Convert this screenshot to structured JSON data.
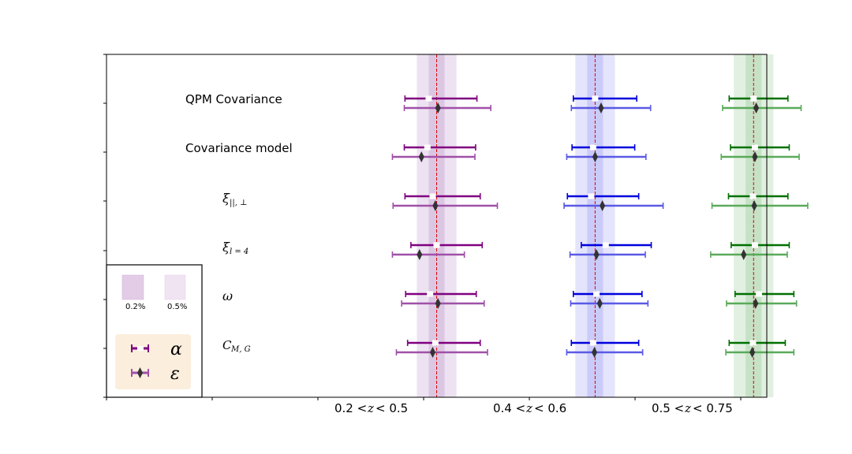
{
  "chart_data": {
    "type": "forest",
    "title": "",
    "xlabel": "",
    "ylabel": "",
    "xlim": [
      -0.1,
      0.9
    ],
    "groups": [
      {
        "label": "0.2 < z < 0.5",
        "label_text": "0.2 < z < 0.5",
        "center": 0.4,
        "band_inner": 0.012,
        "band_outer": 0.03,
        "color_alpha": "#800080",
        "color_eps": "#a050a8",
        "band_color": "#9b5fb0"
      },
      {
        "label": "0.4 < z < 0.6",
        "label_text": "0.4 < z < 0.6",
        "center": 0.64,
        "band_inner": 0.012,
        "band_outer": 0.03,
        "color_alpha": "#0000dd",
        "color_eps": "#5a5ae6",
        "band_color": "#6a6af0"
      },
      {
        "label": "0.5 < z < 0.75",
        "label_text": "0.5 < z < 0.75",
        "center": 0.88,
        "band_inner": 0.012,
        "band_outer": 0.03,
        "color_alpha": "#007000",
        "color_eps": "#5aaa5a",
        "band_color": "#5aaa5a"
      }
    ],
    "rows": [
      {
        "label": "QPM Covariance",
        "kind": "text"
      },
      {
        "label": "Covariance model",
        "kind": "text"
      },
      {
        "label": "ξ||,⊥",
        "kind": "xi_par_perp"
      },
      {
        "label": "ξl=4",
        "kind": "xi_l4"
      },
      {
        "label": "ω",
        "kind": "omega"
      },
      {
        "label": "CM,G",
        "kind": "cmg"
      }
    ],
    "alpha": [
      [
        [
          0.352,
          0.388,
          0.461
        ],
        [
          0.607,
          0.64,
          0.703
        ],
        [
          0.843,
          0.88,
          0.932
        ]
      ],
      [
        [
          0.351,
          0.386,
          0.459
        ],
        [
          0.605,
          0.637,
          0.7
        ],
        [
          0.845,
          0.882,
          0.934
        ]
      ],
      [
        [
          0.352,
          0.394,
          0.466
        ],
        [
          0.598,
          0.634,
          0.706
        ],
        [
          0.842,
          0.879,
          0.932
        ]
      ],
      [
        [
          0.361,
          0.4,
          0.469
        ],
        [
          0.619,
          0.656,
          0.725
        ],
        [
          0.846,
          0.882,
          0.934
        ]
      ],
      [
        [
          0.353,
          0.39,
          0.46
        ],
        [
          0.607,
          0.642,
          0.711
        ],
        [
          0.852,
          0.888,
          0.941
        ]
      ],
      [
        [
          0.356,
          0.398,
          0.466
        ],
        [
          0.604,
          0.637,
          0.706
        ],
        [
          0.843,
          0.879,
          0.928
        ]
      ]
    ],
    "epsilon": [
      [
        [
          0.351,
          0.402,
          0.482
        ],
        [
          0.604,
          0.649,
          0.724
        ],
        [
          0.833,
          0.884,
          0.952
        ]
      ],
      [
        [
          0.333,
          0.377,
          0.458
        ],
        [
          0.597,
          0.64,
          0.717
        ],
        [
          0.831,
          0.882,
          0.949
        ]
      ],
      [
        [
          0.334,
          0.398,
          0.492
        ],
        [
          0.593,
          0.651,
          0.743
        ],
        [
          0.817,
          0.881,
          0.962
        ]
      ],
      [
        [
          0.333,
          0.374,
          0.442
        ],
        [
          0.602,
          0.642,
          0.716
        ],
        [
          0.815,
          0.865,
          0.931
        ]
      ],
      [
        [
          0.347,
          0.402,
          0.472
        ],
        [
          0.603,
          0.647,
          0.72
        ],
        [
          0.839,
          0.883,
          0.945
        ]
      ],
      [
        [
          0.339,
          0.394,
          0.477
        ],
        [
          0.597,
          0.639,
          0.712
        ],
        [
          0.838,
          0.878,
          0.941
        ]
      ]
    ],
    "legend": {
      "band_inner_label": "0.2%",
      "band_outer_label": "0.5%",
      "alpha_label": "α",
      "epsilon_label": "ε",
      "location": "lower-left"
    }
  }
}
